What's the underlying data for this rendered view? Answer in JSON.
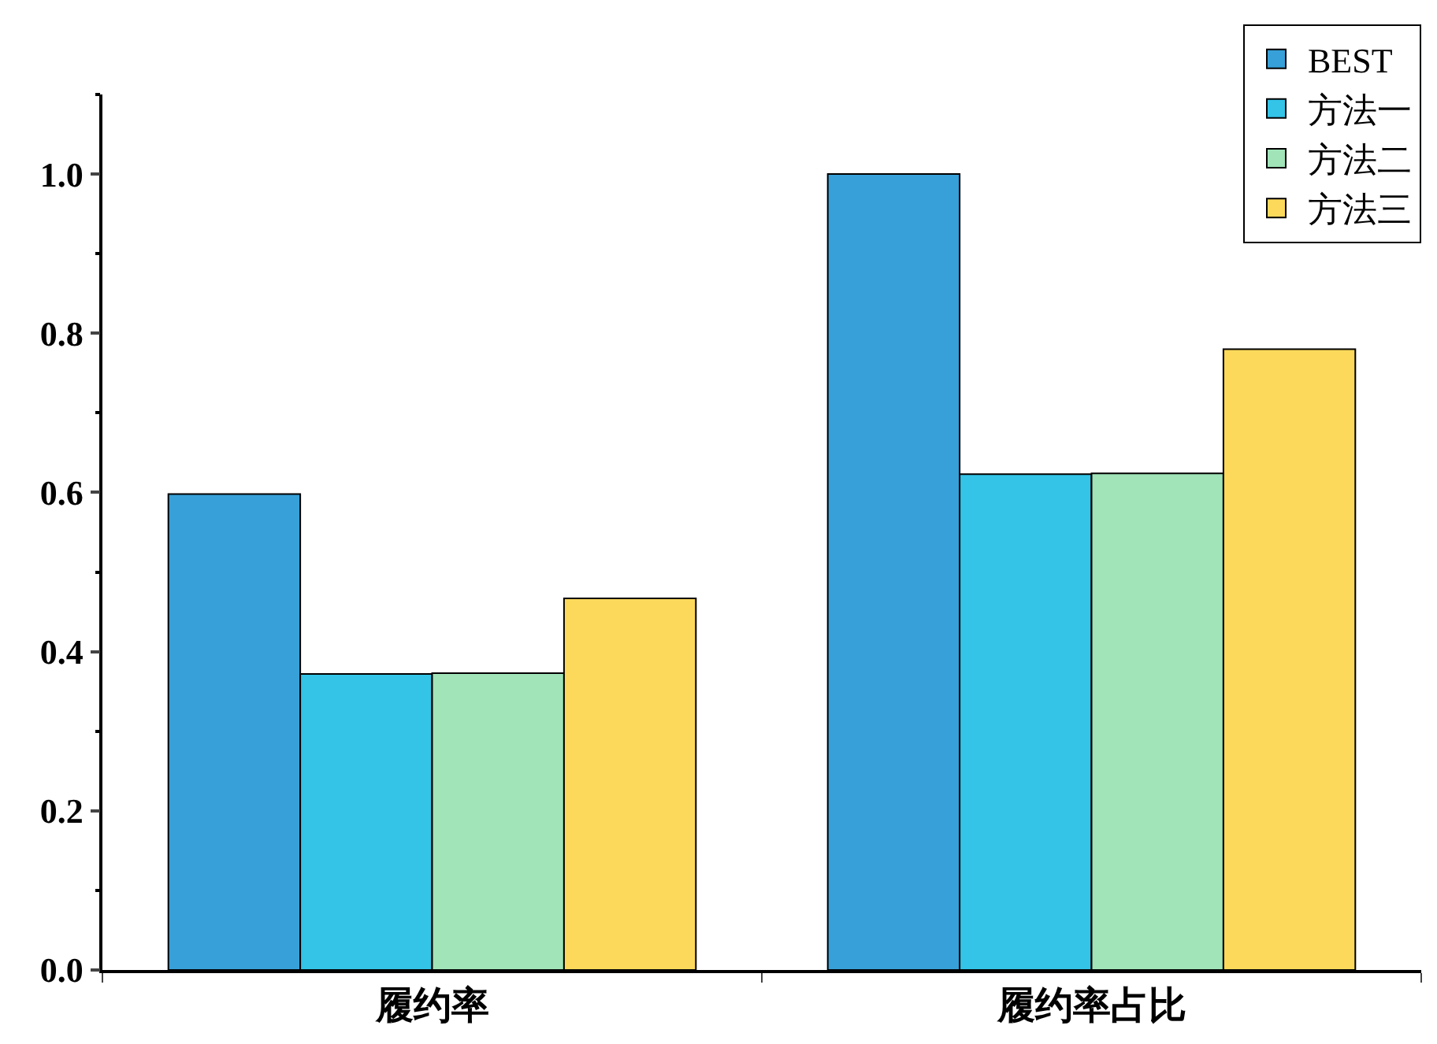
{
  "chart_data": {
    "type": "bar",
    "categories": [
      "履约率",
      "履约率占比"
    ],
    "series": [
      {
        "name": "BEST",
        "color": "#37a0d8",
        "values": [
          0.598,
          1.0
        ]
      },
      {
        "name": "方法一",
        "color": "#33c4e8",
        "values": [
          0.372,
          0.623
        ]
      },
      {
        "name": "方法二",
        "color": "#a0e4b8",
        "values": [
          0.373,
          0.624
        ]
      },
      {
        "name": "方法三",
        "color": "#fdd95b",
        "values": [
          0.467,
          0.78
        ]
      }
    ],
    "ylim": [
      0,
      1.1
    ],
    "yticks": [
      {
        "value": 0,
        "label": "0.0"
      },
      {
        "value": 0.2,
        "label": "0.2"
      },
      {
        "value": 0.4,
        "label": "0.4"
      },
      {
        "value": 0.6,
        "label": "0.6"
      },
      {
        "value": 0.8,
        "label": "0.8"
      },
      {
        "value": 1.0,
        "label": "1.0"
      }
    ],
    "legend": "top right"
  }
}
